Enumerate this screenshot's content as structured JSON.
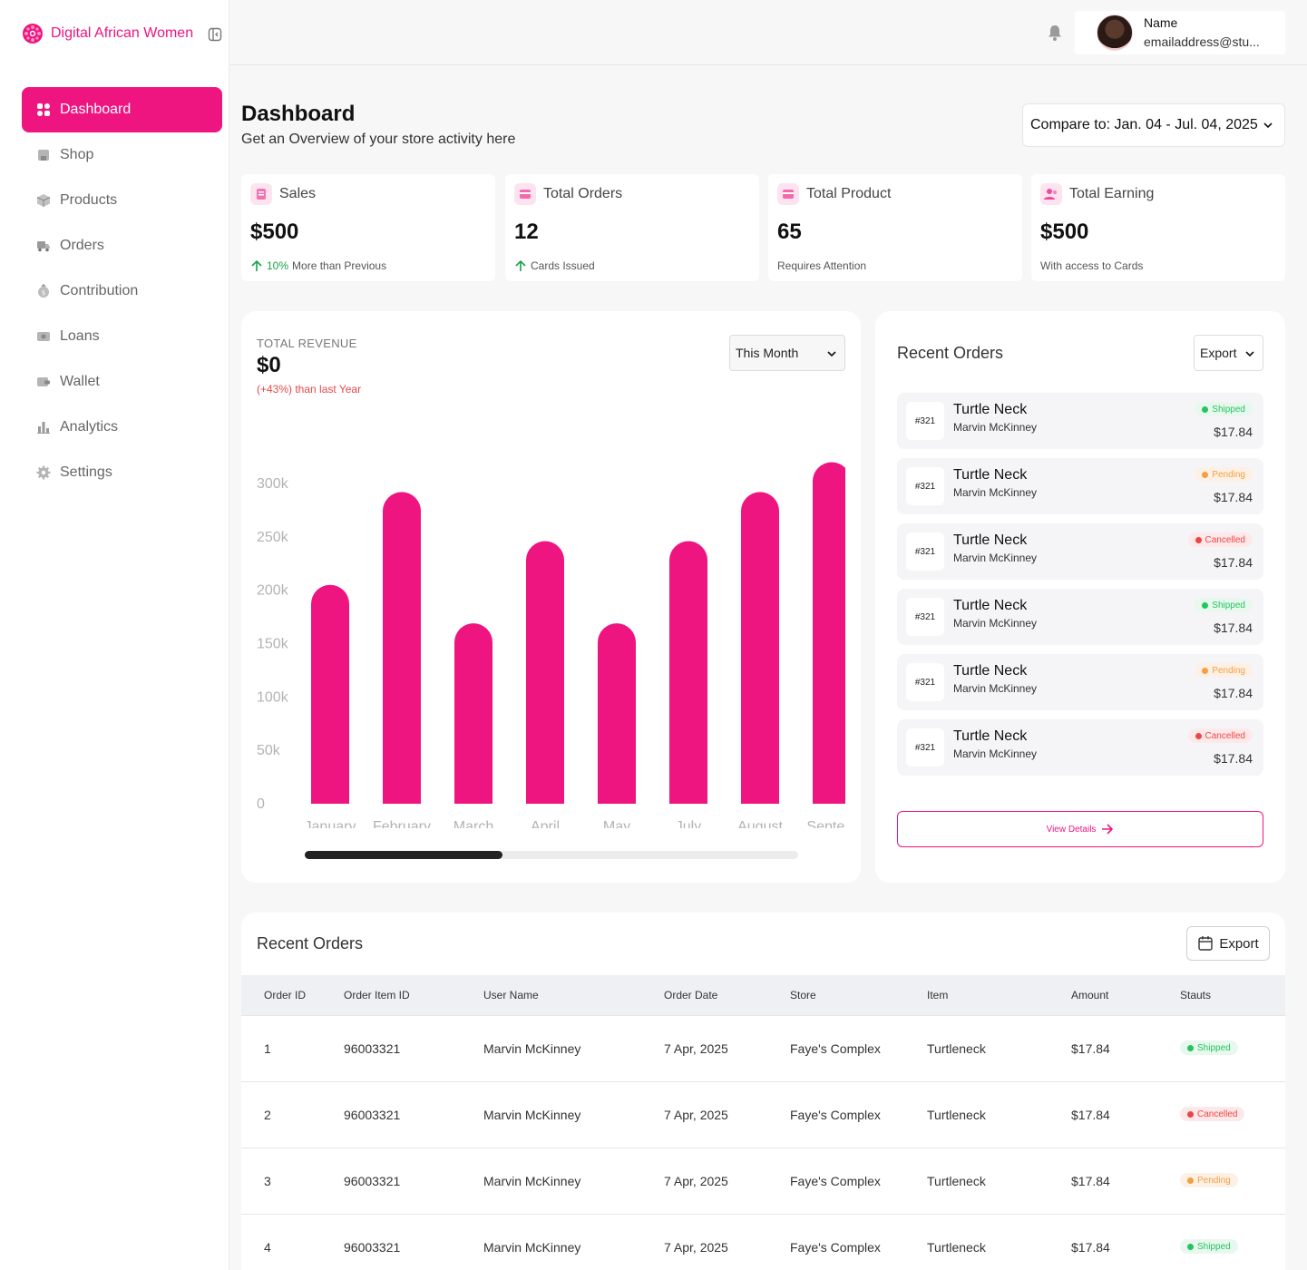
{
  "brand": {
    "name": "Digital African Women"
  },
  "nav": [
    {
      "label": "Dashboard",
      "icon": "dashboard-icon",
      "active": true
    },
    {
      "label": "Shop",
      "icon": "shop-icon"
    },
    {
      "label": "Products",
      "icon": "products-icon"
    },
    {
      "label": "Orders",
      "icon": "orders-icon"
    },
    {
      "label": "Contribution",
      "icon": "contribution-icon"
    },
    {
      "label": "Loans",
      "icon": "loans-icon"
    },
    {
      "label": "Wallet",
      "icon": "wallet-icon"
    },
    {
      "label": "Analytics",
      "icon": "analytics-icon"
    },
    {
      "label": "Settings",
      "icon": "settings-icon"
    }
  ],
  "user": {
    "name": "Name",
    "email": "emailaddress@stu..."
  },
  "header": {
    "title": "Dashboard",
    "subtitle": "Get an Overview of your store activity here",
    "compare": "Compare to: Jan. 04 - Jul. 04, 2025"
  },
  "stats": [
    {
      "label": "Sales",
      "value": "$500",
      "foot_highlight": "10%",
      "foot": "More than Previous"
    },
    {
      "label": "Total Orders",
      "value": "12",
      "foot_highlight": "",
      "foot": "Cards Issued"
    },
    {
      "label": "Total Product",
      "value": "65",
      "foot_highlight": "",
      "foot": "Requires Attention"
    },
    {
      "label": "Total Earning",
      "value": "$500",
      "foot_highlight": "",
      "foot": "With access to Cards"
    }
  ],
  "revenue": {
    "label": "TOTAL REVENUE",
    "value": "$0",
    "delta": "(+43%) than last Year",
    "period": "This Month"
  },
  "chart_data": {
    "type": "bar",
    "title": "TOTAL REVENUE",
    "categories": [
      "January",
      "February",
      "March",
      "April",
      "May",
      "July",
      "August",
      "Septem"
    ],
    "values": [
      205000,
      292000,
      169000,
      246000,
      169000,
      246000,
      292000,
      320000
    ],
    "yticks": [
      "0",
      "50k",
      "100k",
      "150k",
      "200k",
      "250k",
      "300k"
    ],
    "ylim": [
      0,
      320000
    ],
    "color": "#ee1580",
    "xlabel": "",
    "ylabel": ""
  },
  "recent_orders_side": {
    "title": "Recent Orders",
    "export": "Export",
    "view_details": "View Details",
    "items": [
      {
        "id": "#321",
        "name": "Turtle Neck",
        "customer": "Marvin McKinney",
        "status": "Shipped",
        "status_key": "shipped",
        "amount": "$17.84"
      },
      {
        "id": "#321",
        "name": "Turtle Neck",
        "customer": "Marvin McKinney",
        "status": "Pending",
        "status_key": "pending",
        "amount": "$17.84"
      },
      {
        "id": "#321",
        "name": "Turtle Neck",
        "customer": "Marvin McKinney",
        "status": "Cancelled",
        "status_key": "cancelled",
        "amount": "$17.84"
      },
      {
        "id": "#321",
        "name": "Turtle Neck",
        "customer": "Marvin McKinney",
        "status": "Shipped",
        "status_key": "shipped",
        "amount": "$17.84"
      },
      {
        "id": "#321",
        "name": "Turtle Neck",
        "customer": "Marvin McKinney",
        "status": "Pending",
        "status_key": "pending",
        "amount": "$17.84"
      },
      {
        "id": "#321",
        "name": "Turtle Neck",
        "customer": "Marvin McKinney",
        "status": "Cancelled",
        "status_key": "cancelled",
        "amount": "$17.84"
      }
    ]
  },
  "orders_table": {
    "title": "Recent Orders",
    "export": "Export",
    "columns": [
      "Order ID",
      "Order Item ID",
      "User Name",
      "Order Date",
      "Store",
      "Item",
      "Amount",
      "Stauts"
    ],
    "rows": [
      {
        "id": "1",
        "item_id": "96003321",
        "user": "Marvin McKinney",
        "date": "7 Apr, 2025",
        "store": "Faye's Complex",
        "item": "Turtleneck",
        "amount": "$17.84",
        "status": "Shipped",
        "status_key": "shipped"
      },
      {
        "id": "2",
        "item_id": "96003321",
        "user": "Marvin McKinney",
        "date": "7 Apr, 2025",
        "store": "Faye's Complex",
        "item": "Turtleneck",
        "amount": "$17.84",
        "status": "Cancelled",
        "status_key": "cancelled"
      },
      {
        "id": "3",
        "item_id": "96003321",
        "user": "Marvin McKinney",
        "date": "7 Apr, 2025",
        "store": "Faye's Complex",
        "item": "Turtleneck",
        "amount": "$17.84",
        "status": "Pending",
        "status_key": "pending"
      },
      {
        "id": "4",
        "item_id": "96003321",
        "user": "Marvin McKinney",
        "date": "7 Apr, 2025",
        "store": "Faye's Complex",
        "item": "Turtleneck",
        "amount": "$17.84",
        "status": "Shipped",
        "status_key": "shipped"
      }
    ]
  }
}
